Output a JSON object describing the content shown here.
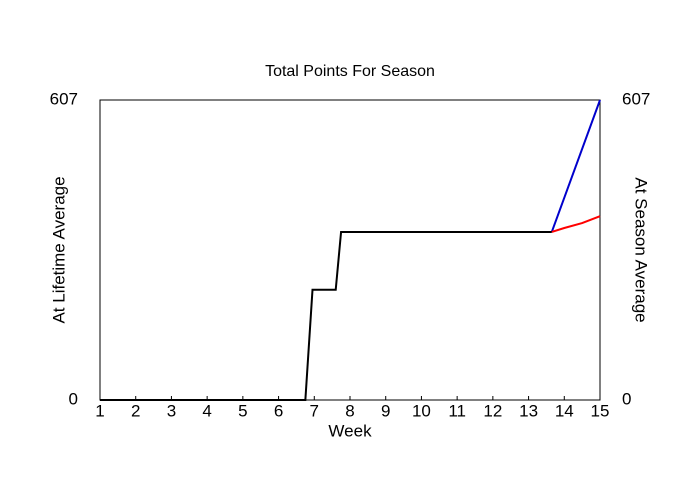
{
  "chart_data": {
    "type": "line",
    "title": "Total Points For Season",
    "xlabel": "Week",
    "ylabel": "At Lifetime Average",
    "ylabel_color": "#0000cc",
    "y2label": "At Season Average",
    "y2label_color": "#ff0000",
    "xlim": [
      1,
      15
    ],
    "xticks": [
      1,
      2,
      3,
      4,
      5,
      6,
      7,
      8,
      9,
      10,
      11,
      12,
      13,
      14,
      15
    ],
    "ylim": [
      0,
      607
    ],
    "yticks": [
      0,
      607
    ],
    "y2lim": [
      0,
      607
    ],
    "y2ticks": [
      0,
      607
    ],
    "series": [
      {
        "color": "#0000cc",
        "x": [
          13.65,
          15
        ],
        "values": [
          340,
          607
        ]
      },
      {
        "color": "#ff0000",
        "axis": "y2",
        "x": [
          13.65,
          14,
          14.5,
          15
        ],
        "values": [
          340,
          348,
          358,
          372
        ]
      },
      {
        "color": "#000000",
        "x": [
          1,
          6.75,
          6.95,
          7.6,
          7.75,
          13.65
        ],
        "values": [
          0,
          0,
          223,
          223,
          340,
          340
        ]
      }
    ]
  }
}
